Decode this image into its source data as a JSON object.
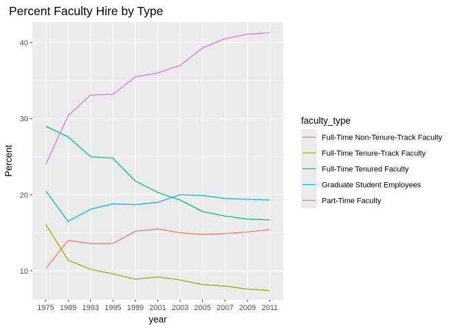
{
  "chart_data": {
    "type": "line",
    "title": "Percent Faculty Hire by Type",
    "xlabel": "year",
    "ylabel": "Percent",
    "x": [
      "1975",
      "1989",
      "1993",
      "1995",
      "1999",
      "2001",
      "2003",
      "2005",
      "2007",
      "2009",
      "2011"
    ],
    "ylim": [
      6.2,
      42.7
    ],
    "yticks": [
      10,
      20,
      30,
      40
    ],
    "grid": true,
    "legend_title": "faculty_type",
    "legend_position": "right",
    "series": [
      {
        "name": "Full-Time Non-Tenure-Track Faculty",
        "color": "#F8766D",
        "values": [
          10.3,
          14.0,
          13.6,
          13.6,
          15.2,
          15.5,
          15.0,
          14.8,
          14.9,
          15.1,
          15.4
        ]
      },
      {
        "name": "Full-Time Tenure-Track Faculty",
        "color": "#A3A500",
        "values": [
          16.1,
          11.4,
          10.2,
          9.6,
          8.9,
          9.2,
          8.8,
          8.2,
          8.0,
          7.6,
          7.4
        ]
      },
      {
        "name": "Full-Time Tenured Faculty",
        "color": "#00BF7D",
        "values": [
          29.0,
          27.6,
          25.0,
          24.8,
          21.8,
          20.3,
          19.3,
          17.8,
          17.2,
          16.8,
          16.7
        ]
      },
      {
        "name": "Graduate Student Employees",
        "color": "#00B0F6",
        "values": [
          20.5,
          16.5,
          18.1,
          18.8,
          18.7,
          19.0,
          20.0,
          19.9,
          19.5,
          19.4,
          19.3
        ]
      },
      {
        "name": "Part-Time Faculty",
        "color": "#E76BF3",
        "values": [
          24.0,
          30.4,
          33.1,
          33.2,
          35.5,
          36.0,
          37.0,
          39.3,
          40.5,
          41.1,
          41.3
        ]
      }
    ]
  }
}
